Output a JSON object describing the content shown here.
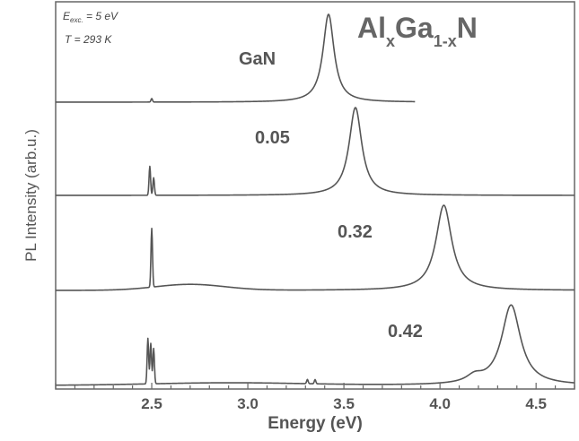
{
  "chart_data": {
    "type": "line",
    "title": "",
    "formula": {
      "base1": "Al",
      "sub1": "x",
      "base2": "Ga",
      "sub2": "1-x",
      "base3": "N"
    },
    "annotations": {
      "excitation_label": "E",
      "excitation_sub": "exc.",
      "excitation_value": " = 5 eV",
      "temperature": "T = 293 K"
    },
    "xlabel": "Energy (eV)",
    "ylabel": "PL Intensity (arb.u.)",
    "xlim": [
      2.0,
      4.7
    ],
    "xticks": [
      "2.5",
      "3.0",
      "3.5",
      "4.0",
      "4.5"
    ],
    "xtick_values": [
      2.5,
      3.0,
      3.5,
      4.0,
      4.5
    ],
    "series": [
      {
        "name": "GaN",
        "x_range": [
          2.0,
          3.87
        ],
        "peaks": [
          {
            "center": 3.42,
            "height": 1.0,
            "width": 0.035
          }
        ],
        "spikes": [
          {
            "center": 2.5,
            "height": 0.04
          }
        ],
        "broad": []
      },
      {
        "name": "0.05",
        "x_range": [
          2.0,
          4.7
        ],
        "peaks": [
          {
            "center": 3.56,
            "height": 1.0,
            "width": 0.04
          }
        ],
        "spikes": [
          {
            "center": 2.49,
            "height": 0.33
          },
          {
            "center": 2.51,
            "height": 0.2
          }
        ],
        "broad": []
      },
      {
        "name": "0.32",
        "x_range": [
          2.0,
          4.7
        ],
        "peaks": [
          {
            "center": 4.02,
            "height": 1.0,
            "width": 0.05
          }
        ],
        "spikes": [
          {
            "center": 2.5,
            "height": 0.69
          }
        ],
        "broad": [
          {
            "center": 2.7,
            "height": 0.07,
            "width": 0.18
          }
        ]
      },
      {
        "name": "0.42",
        "x_range": [
          2.0,
          4.7
        ],
        "peaks": [
          {
            "center": 4.37,
            "height": 0.95,
            "width": 0.06
          },
          {
            "center": 4.18,
            "height": 0.08,
            "width": 0.05
          }
        ],
        "spikes": [
          {
            "center": 2.48,
            "height": 0.54
          },
          {
            "center": 2.495,
            "height": 0.48
          },
          {
            "center": 2.51,
            "height": 0.42
          },
          {
            "center": 3.31,
            "height": 0.05
          },
          {
            "center": 3.35,
            "height": 0.05
          }
        ],
        "broad": [
          {
            "center": 2.9,
            "height": 0.03,
            "width": 0.4
          }
        ]
      }
    ]
  }
}
